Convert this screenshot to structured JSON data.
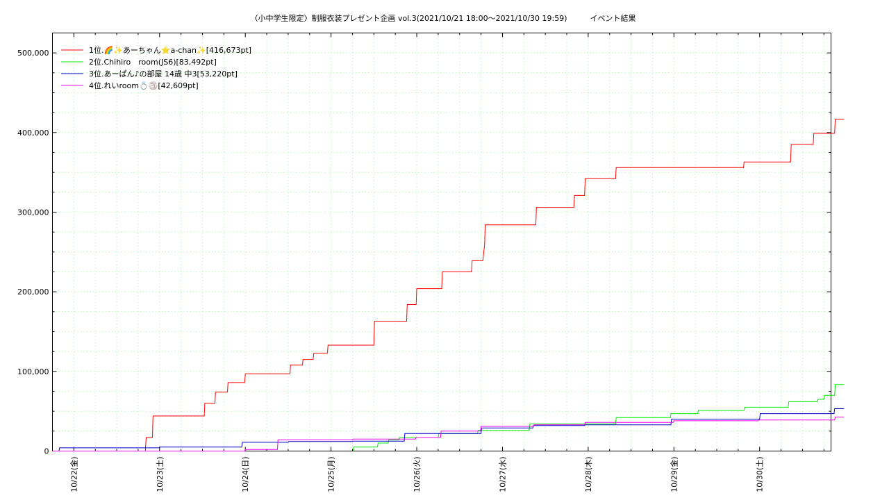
{
  "chart_data": {
    "type": "line",
    "title": "〈小中学生限定〉制服衣装プレゼント企画 vol.3(2021/10/21 18:00～2021/10/30 19:59)　　　イベント結果",
    "xlabel": "",
    "ylabel": "",
    "x_axis": "datetime",
    "xlim": [
      "2021-10-21 18:00",
      "2021-10-30 19:59"
    ],
    "ylim": [
      0,
      525000
    ],
    "yticks": [
      0,
      100000,
      200000,
      300000,
      400000,
      500000
    ],
    "ytick_labels": [
      "0",
      "100,000",
      "200,000",
      "300,000",
      "400,000",
      "500,000"
    ],
    "xticks": [
      "2021-10-22 00:00",
      "2021-10-23 00:00",
      "2021-10-24 00:00",
      "2021-10-25 00:00",
      "2021-10-26 00:00",
      "2021-10-27 00:00",
      "2021-10-28 00:00",
      "2021-10-29 00:00",
      "2021-10-30 00:00"
    ],
    "xtick_labels": [
      "10/22(金)",
      "10/23(土)",
      "10/24(日)",
      "10/25(月)",
      "10/26(火)",
      "10/27(水)",
      "10/28(木)",
      "10/29(金)",
      "10/30(土)"
    ],
    "grid": true,
    "legend_position": "top-left",
    "series": [
      {
        "name": "1位.🌈✨あーちゃん⭐a-chan✨[416,673pt]",
        "color": "#ff0000",
        "step": true,
        "points": [
          [
            "2021-10-21 18:00",
            0
          ],
          [
            "2021-10-22 20:00",
            0
          ],
          [
            "2021-10-22 20:15",
            17000
          ],
          [
            "2021-10-22 22:00",
            17000
          ],
          [
            "2021-10-22 22:10",
            44000
          ],
          [
            "2021-10-23 12:30",
            44000
          ],
          [
            "2021-10-23 12:40",
            60000
          ],
          [
            "2021-10-23 15:30",
            60000
          ],
          [
            "2021-10-23 15:40",
            74000
          ],
          [
            "2021-10-23 19:00",
            74000
          ],
          [
            "2021-10-23 19:10",
            86000
          ],
          [
            "2021-10-23 23:50",
            86000
          ],
          [
            "2021-10-24 00:00",
            97000
          ],
          [
            "2021-10-24 12:30",
            97000
          ],
          [
            "2021-10-24 12:40",
            108000
          ],
          [
            "2021-10-24 16:00",
            108000
          ],
          [
            "2021-10-24 16:10",
            115000
          ],
          [
            "2021-10-24 19:00",
            115000
          ],
          [
            "2021-10-24 19:10",
            123000
          ],
          [
            "2021-10-24 23:00",
            123000
          ],
          [
            "2021-10-24 23:10",
            133000
          ],
          [
            "2021-10-25 12:00",
            133000
          ],
          [
            "2021-10-25 12:10",
            163000
          ],
          [
            "2021-10-25 21:10",
            163000
          ],
          [
            "2021-10-25 21:20",
            184000
          ],
          [
            "2021-10-25 23:50",
            184000
          ],
          [
            "2021-10-26 00:00",
            204000
          ],
          [
            "2021-10-26 07:00",
            204000
          ],
          [
            "2021-10-26 07:10",
            225000
          ],
          [
            "2021-10-26 15:20",
            225000
          ],
          [
            "2021-10-26 15:30",
            239000
          ],
          [
            "2021-10-26 18:30",
            239000
          ],
          [
            "2021-10-26 19:00",
            260000
          ],
          [
            "2021-10-26 19:10",
            284000
          ],
          [
            "2021-10-27 09:20",
            284000
          ],
          [
            "2021-10-27 09:30",
            306000
          ],
          [
            "2021-10-27 20:00",
            306000
          ],
          [
            "2021-10-27 20:10",
            321000
          ],
          [
            "2021-10-27 23:00",
            321000
          ],
          [
            "2021-10-27 23:10",
            342000
          ],
          [
            "2021-10-28 07:40",
            342000
          ],
          [
            "2021-10-28 07:50",
            356000
          ],
          [
            "2021-10-29 19:30",
            356000
          ],
          [
            "2021-10-29 19:40",
            363000
          ],
          [
            "2021-10-30 08:40",
            363000
          ],
          [
            "2021-10-30 08:50",
            385000
          ],
          [
            "2021-10-30 15:00",
            385000
          ],
          [
            "2021-10-30 15:10",
            399000
          ],
          [
            "2021-10-30 21:00",
            399000
          ],
          [
            "2021-10-30 21:10",
            416673
          ],
          [
            "2021-10-30 23:40",
            416673
          ]
        ]
      },
      {
        "name": "2位.Chihiro　room(JS6)[83,492pt]",
        "color": "#00ee00",
        "step": true,
        "points": [
          [
            "2021-10-25 06:10",
            0
          ],
          [
            "2021-10-25 06:20",
            5000
          ],
          [
            "2021-10-25 13:00",
            5000
          ],
          [
            "2021-10-25 13:10",
            10000
          ],
          [
            "2021-10-25 16:00",
            10000
          ],
          [
            "2021-10-25 16:10",
            14000
          ],
          [
            "2021-10-25 19:00",
            14000
          ],
          [
            "2021-10-25 19:10",
            17000
          ],
          [
            "2021-10-26 06:00",
            17000
          ],
          [
            "2021-10-26 06:10",
            22000
          ],
          [
            "2021-10-26 17:00",
            22000
          ],
          [
            "2021-10-26 17:10",
            26000
          ],
          [
            "2021-10-27 07:30",
            26000
          ],
          [
            "2021-10-27 07:40",
            34000
          ],
          [
            "2021-10-28 07:40",
            34000
          ],
          [
            "2021-10-28 07:50",
            42000
          ],
          [
            "2021-10-28 23:00",
            42000
          ],
          [
            "2021-10-28 23:10",
            47000
          ],
          [
            "2021-10-29 06:40",
            47000
          ],
          [
            "2021-10-29 06:50",
            51000
          ],
          [
            "2021-10-29 19:40",
            51000
          ],
          [
            "2021-10-29 19:50",
            55000
          ],
          [
            "2021-10-30 08:00",
            55000
          ],
          [
            "2021-10-30 08:10",
            62000
          ],
          [
            "2021-10-30 16:10",
            62000
          ],
          [
            "2021-10-30 16:20",
            65000
          ],
          [
            "2021-10-30 18:00",
            65000
          ],
          [
            "2021-10-30 18:10",
            70000
          ],
          [
            "2021-10-30 21:00",
            70000
          ],
          [
            "2021-10-30 21:10",
            83492
          ],
          [
            "2021-10-30 23:40",
            83492
          ]
        ]
      },
      {
        "name": "3位.あーぱん♪の部屋 14歳 中3[53,220pt]",
        "color": "#0000cc",
        "step": true,
        "points": [
          [
            "2021-10-21 18:00",
            0
          ],
          [
            "2021-10-21 19:50",
            0
          ],
          [
            "2021-10-21 20:00",
            4000
          ],
          [
            "2021-10-22 23:50",
            4000
          ],
          [
            "2021-10-23 00:00",
            5000
          ],
          [
            "2021-10-23 23:00",
            5000
          ],
          [
            "2021-10-23 23:10",
            11000
          ],
          [
            "2021-10-24 12:00",
            11000
          ],
          [
            "2021-10-24 12:10",
            12000
          ],
          [
            "2021-10-25 06:00",
            12000
          ],
          [
            "2021-10-25 06:10",
            12500
          ],
          [
            "2021-10-25 20:30",
            12500
          ],
          [
            "2021-10-25 20:40",
            22000
          ],
          [
            "2021-10-26 18:00",
            22000
          ],
          [
            "2021-10-26 18:10",
            29000
          ],
          [
            "2021-10-27 08:30",
            29000
          ],
          [
            "2021-10-27 08:40",
            32000
          ],
          [
            "2021-10-27 23:00",
            32000
          ],
          [
            "2021-10-27 23:10",
            33000
          ],
          [
            "2021-10-28 23:10",
            33000
          ],
          [
            "2021-10-28 23:20",
            40000
          ],
          [
            "2021-10-30 00:00",
            40000
          ],
          [
            "2021-10-30 00:10",
            47000
          ],
          [
            "2021-10-30 20:50",
            47000
          ],
          [
            "2021-10-30 21:00",
            53220
          ],
          [
            "2021-10-30 23:40",
            53220
          ]
        ]
      },
      {
        "name": "4位.れいroom💍🏐[42,609pt]",
        "color": "#ee00ee",
        "step": true,
        "points": [
          [
            "2021-10-21 18:00",
            0
          ],
          [
            "2021-10-23 23:50",
            0
          ],
          [
            "2021-10-24 00:00",
            2000
          ],
          [
            "2021-10-24 09:00",
            2000
          ],
          [
            "2021-10-24 09:10",
            14000
          ],
          [
            "2021-10-25 06:00",
            14000
          ],
          [
            "2021-10-25 06:10",
            15000
          ],
          [
            "2021-10-25 23:40",
            15000
          ],
          [
            "2021-10-25 23:50",
            17000
          ],
          [
            "2021-10-26 06:40",
            17000
          ],
          [
            "2021-10-26 06:50",
            25000
          ],
          [
            "2021-10-26 17:50",
            25000
          ],
          [
            "2021-10-26 18:00",
            31000
          ],
          [
            "2021-10-27 08:40",
            31000
          ],
          [
            "2021-10-27 08:50",
            33000
          ],
          [
            "2021-10-27 23:00",
            33000
          ],
          [
            "2021-10-27 23:10",
            36000
          ],
          [
            "2021-10-28 23:50",
            36000
          ],
          [
            "2021-10-29 00:00",
            38000
          ],
          [
            "2021-10-29 23:30",
            38000
          ],
          [
            "2021-10-29 23:40",
            39000
          ],
          [
            "2021-10-30 21:00",
            39000
          ],
          [
            "2021-10-30 21:10",
            42609
          ],
          [
            "2021-10-30 23:40",
            42609
          ]
        ]
      }
    ]
  }
}
